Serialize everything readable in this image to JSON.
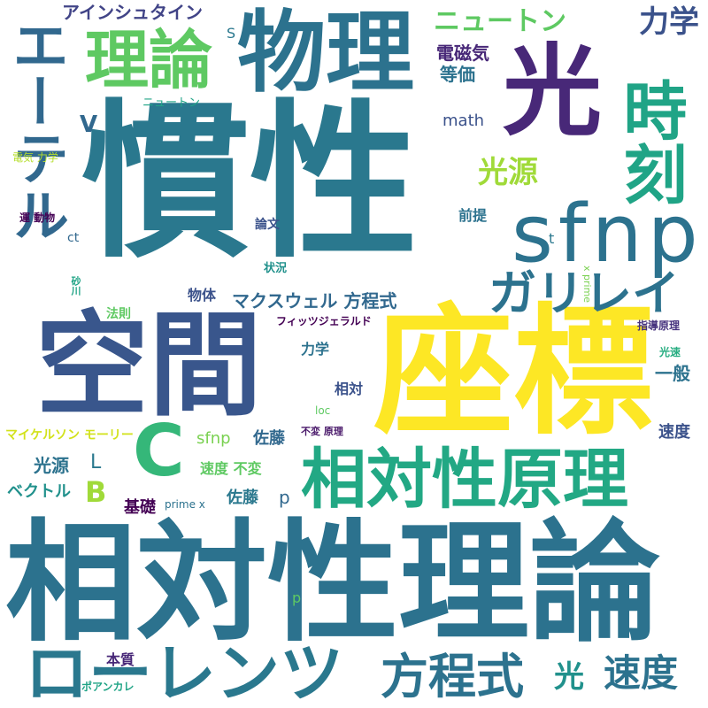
{
  "words": [
    {
      "text": "慣性",
      "color": "#2a788e",
      "vertical": false
    },
    {
      "text": "相対性理論",
      "color": "#2c728e",
      "vertical": false
    },
    {
      "text": "座標",
      "color": "#fde725",
      "vertical": false
    },
    {
      "text": "空間",
      "color": "#39568c",
      "vertical": false
    },
    {
      "text": "物理",
      "color": "#2c728e",
      "vertical": false
    },
    {
      "text": "光",
      "color": "#482878",
      "vertical": false
    },
    {
      "text": "sfnp",
      "color": "#2c728e",
      "vertical": false
    },
    {
      "text": "相対性原理",
      "color": "#22a884",
      "vertical": false
    },
    {
      "text": "理論",
      "color": "#5ec962",
      "vertical": false
    },
    {
      "text": "エーテル",
      "color": "#31688e",
      "vertical": true
    },
    {
      "text": "時刻",
      "color": "#20a486",
      "vertical": true
    },
    {
      "text": "ローレンツ",
      "color": "#2a788e",
      "vertical": false
    },
    {
      "text": "方程式",
      "color": "#2c728e",
      "vertical": false
    },
    {
      "text": "ガリレイ",
      "color": "#2c728e",
      "vertical": false
    },
    {
      "text": "C",
      "color": "#35b779",
      "vertical": false
    },
    {
      "text": "光源",
      "color": "#a0da39",
      "vertical": false
    },
    {
      "text": "ニュートン",
      "color": "#5ec962",
      "vertical": false
    },
    {
      "text": "力学",
      "color": "#3b528b",
      "vertical": false
    },
    {
      "text": "速度",
      "color": "#2c728e",
      "vertical": false
    },
    {
      "text": "光",
      "color": "#21918c",
      "vertical": false
    },
    {
      "text": "アインシュタイン",
      "color": "#414487",
      "vertical": false
    },
    {
      "text": "マクスウェル 方程式",
      "color": "#31688e",
      "vertical": false
    },
    {
      "text": "電磁気",
      "color": "#482878",
      "vertical": false
    },
    {
      "text": "等価",
      "color": "#2c728e",
      "vertical": false
    },
    {
      "text": "ニュートン",
      "color": "#20a486",
      "vertical": false
    },
    {
      "text": "math",
      "color": "#3b528b",
      "vertical": false
    },
    {
      "text": "V",
      "color": "#31688e",
      "vertical": false
    },
    {
      "text": "S",
      "color": "#2a788e",
      "vertical": false
    },
    {
      "text": "電気 力学",
      "color": "#b5de2b",
      "vertical": false
    },
    {
      "text": "前提",
      "color": "#2c728e",
      "vertical": false
    },
    {
      "text": "論文",
      "color": "#3b528b",
      "vertical": false
    },
    {
      "text": "ct",
      "color": "#31688e",
      "vertical": false
    },
    {
      "text": "運 動物",
      "color": "#440154",
      "vertical": false
    },
    {
      "text": "t",
      "color": "#2a788e",
      "vertical": false
    },
    {
      "text": "状況",
      "color": "#21918c",
      "vertical": false
    },
    {
      "text": "砂川",
      "color": "#20a486",
      "vertical": true
    },
    {
      "text": "物体",
      "color": "#3b528b",
      "vertical": false
    },
    {
      "text": "x prime",
      "color": "#7ad151",
      "vertical": true
    },
    {
      "text": "法則",
      "color": "#5ec962",
      "vertical": false
    },
    {
      "text": "フィッツジェラルド",
      "color": "#440154",
      "vertical": false
    },
    {
      "text": "指導原理",
      "color": "#46327e",
      "vertical": false
    },
    {
      "text": "力学",
      "color": "#2c728e",
      "vertical": false
    },
    {
      "text": "光速",
      "color": "#27ad81",
      "vertical": false
    },
    {
      "text": "相対",
      "color": "#3b528b",
      "vertical": false
    },
    {
      "text": "一般",
      "color": "#2c728e",
      "vertical": false
    },
    {
      "text": "loc",
      "color": "#5ec962",
      "vertical": false
    },
    {
      "text": "マイケルソン モーリー",
      "color": "#d2e21b",
      "vertical": false
    },
    {
      "text": "不変 原理",
      "color": "#481769",
      "vertical": false
    },
    {
      "text": "速度",
      "color": "#3b528b",
      "vertical": false
    },
    {
      "text": "sfnp",
      "color": "#7ad151",
      "vertical": false
    },
    {
      "text": "佐藤",
      "color": "#31688e",
      "vertical": false
    },
    {
      "text": "光源",
      "color": "#2c728e",
      "vertical": false
    },
    {
      "text": "L",
      "color": "#2a788e",
      "vertical": false
    },
    {
      "text": "速度 不変",
      "color": "#5ec962",
      "vertical": false
    },
    {
      "text": "ベクトル",
      "color": "#21918c",
      "vertical": false
    },
    {
      "text": "B",
      "color": "#a0da39",
      "vertical": false
    },
    {
      "text": "佐藤",
      "color": "#2a788e",
      "vertical": false
    },
    {
      "text": "p",
      "color": "#31688e",
      "vertical": false
    },
    {
      "text": "基礎",
      "color": "#440154",
      "vertical": false
    },
    {
      "text": "prime x",
      "color": "#2c728e",
      "vertical": false
    },
    {
      "text": "p",
      "color": "#5ec962",
      "vertical": false
    },
    {
      "text": "本質",
      "color": "#482878",
      "vertical": false
    },
    {
      "text": "ポアンカレ",
      "color": "#20a486",
      "vertical": false
    }
  ]
}
